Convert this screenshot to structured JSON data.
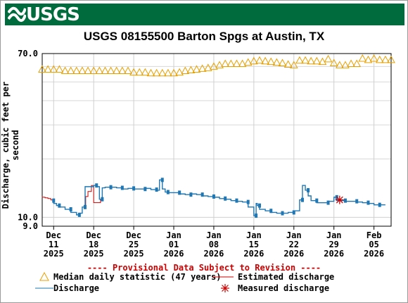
{
  "header": {
    "logo_text": "USGS",
    "brand_color": "#006b3c",
    "logo_icon": "usgs-wave-icon"
  },
  "chart_data": {
    "type": "line",
    "title": "USGS 08155500 Barton Spgs at Austin, TX",
    "ylabel": "Discharge, cubic feet per second",
    "xlabel": "",
    "yscale": "log",
    "ylim": [
      9.0,
      70.0
    ],
    "xlim": [
      "2025-12-09",
      "2026-02-08"
    ],
    "y_ticks": [
      {
        "value": 70.0,
        "label": "70.0"
      },
      {
        "value": 10.0,
        "label": "10.0"
      },
      {
        "value": 9.0,
        "label": "9.0"
      }
    ],
    "x_ticks": [
      {
        "date": "2025-12-11",
        "line1": "Dec",
        "line2": "11",
        "line3": "2025"
      },
      {
        "date": "2025-12-18",
        "line1": "Dec",
        "line2": "18",
        "line3": "2025"
      },
      {
        "date": "2025-12-25",
        "line1": "Dec",
        "line2": "25",
        "line3": "2025"
      },
      {
        "date": "2026-01-01",
        "line1": "Jan",
        "line2": "01",
        "line3": "2026"
      },
      {
        "date": "2026-01-08",
        "line1": "Jan",
        "line2": "08",
        "line3": "2026"
      },
      {
        "date": "2026-01-15",
        "line1": "Jan",
        "line2": "15",
        "line3": "2026"
      },
      {
        "date": "2026-01-22",
        "line1": "Jan",
        "line2": "22",
        "line3": "2026"
      },
      {
        "date": "2026-01-29",
        "line1": "Jan",
        "line2": "29",
        "line3": "2026"
      },
      {
        "date": "2026-02-05",
        "line1": "Feb",
        "line2": "05",
        "line3": "2026"
      }
    ],
    "grid": true,
    "series": [
      {
        "name": "Median daily statistic (47 years)",
        "marker": "triangle",
        "color": "#e8a000",
        "points": [
          [
            "2025-12-09",
            58
          ],
          [
            "2025-12-10",
            58
          ],
          [
            "2025-12-11",
            58
          ],
          [
            "2025-12-12",
            58
          ],
          [
            "2025-12-13",
            57
          ],
          [
            "2025-12-14",
            57
          ],
          [
            "2025-12-15",
            57
          ],
          [
            "2025-12-16",
            57
          ],
          [
            "2025-12-17",
            57
          ],
          [
            "2025-12-18",
            57
          ],
          [
            "2025-12-19",
            57
          ],
          [
            "2025-12-20",
            57
          ],
          [
            "2025-12-21",
            57
          ],
          [
            "2025-12-22",
            57
          ],
          [
            "2025-12-23",
            57
          ],
          [
            "2025-12-24",
            57
          ],
          [
            "2025-12-25",
            56
          ],
          [
            "2025-12-26",
            56
          ],
          [
            "2025-12-27",
            56
          ],
          [
            "2025-12-28",
            55.5
          ],
          [
            "2025-12-29",
            55.5
          ],
          [
            "2025-12-30",
            55.5
          ],
          [
            "2025-12-31",
            55.5
          ],
          [
            "2026-01-01",
            55.5
          ],
          [
            "2026-01-02",
            56
          ],
          [
            "2026-01-03",
            57
          ],
          [
            "2026-01-04",
            57.5
          ],
          [
            "2026-01-05",
            58
          ],
          [
            "2026-01-06",
            58.5
          ],
          [
            "2026-01-07",
            59
          ],
          [
            "2026-01-08",
            60
          ],
          [
            "2026-01-09",
            61
          ],
          [
            "2026-01-10",
            62
          ],
          [
            "2026-01-11",
            62
          ],
          [
            "2026-01-12",
            62
          ],
          [
            "2026-01-13",
            62
          ],
          [
            "2026-01-14",
            63
          ],
          [
            "2026-01-15",
            64
          ],
          [
            "2026-01-16",
            64.5
          ],
          [
            "2026-01-17",
            64
          ],
          [
            "2026-01-18",
            63.5
          ],
          [
            "2026-01-19",
            63
          ],
          [
            "2026-01-20",
            62.5
          ],
          [
            "2026-01-21",
            61.5
          ],
          [
            "2026-01-22",
            61
          ],
          [
            "2026-01-23",
            64.5
          ],
          [
            "2026-01-24",
            64.5
          ],
          [
            "2026-01-25",
            64
          ],
          [
            "2026-01-26",
            64
          ],
          [
            "2026-01-27",
            63.5
          ],
          [
            "2026-01-28",
            65.5
          ],
          [
            "2026-01-29",
            62.5
          ],
          [
            "2026-01-30",
            61
          ],
          [
            "2026-01-31",
            61
          ],
          [
            "2026-02-01",
            62
          ],
          [
            "2026-02-02",
            62
          ],
          [
            "2026-02-03",
            66
          ],
          [
            "2026-02-04",
            65
          ],
          [
            "2026-02-05",
            66
          ],
          [
            "2026-02-06",
            65
          ],
          [
            "2026-02-07",
            65
          ],
          [
            "2026-02-08",
            65
          ]
        ]
      },
      {
        "name": "Estimated discharge",
        "color": "#cc0000",
        "points": [
          [
            "2025-12-09",
            12.8
          ],
          [
            "2025-12-09.5",
            12.7
          ],
          [
            "2025-12-10",
            12.6
          ],
          [
            "2025-12-10.5",
            12.5
          ],
          [
            "2025-12-11",
            12.3
          ],
          [
            "2025-12-16.6",
            11.3
          ],
          [
            "2025-12-17",
            12.8
          ],
          [
            "2025-12-17.6",
            13.6
          ],
          [
            "2025-12-18",
            14.6
          ],
          [
            "2025-12-19.2",
            11.9
          ],
          [
            "2025-12-19.5",
            12.4
          ]
        ]
      },
      {
        "name": "Discharge",
        "color": "#1f77b4",
        "points": [
          [
            "2025-12-11",
            12.2
          ],
          [
            "2025-12-11.5",
            11.8
          ],
          [
            "2025-12-12",
            11.5
          ],
          [
            "2025-12-13",
            11.3
          ],
          [
            "2025-12-14",
            11.0
          ],
          [
            "2025-12-15",
            10.6
          ],
          [
            "2025-12-15.5",
            10.3
          ],
          [
            "2025-12-16",
            10.5
          ],
          [
            "2025-12-16.5",
            11.3
          ],
          [
            "2025-12-18",
            14.4
          ],
          [
            "2025-12-18.5",
            14.6
          ],
          [
            "2025-12-19",
            14.4
          ],
          [
            "2025-12-19.5",
            12.4
          ],
          [
            "2025-12-20",
            14.2
          ],
          [
            "2025-12-21",
            14.3
          ],
          [
            "2025-12-22",
            14.3
          ],
          [
            "2025-12-23",
            14.2
          ],
          [
            "2025-12-24",
            14.0
          ],
          [
            "2025-12-25",
            14.1
          ],
          [
            "2025-12-26",
            14.0
          ],
          [
            "2025-12-27",
            14.0
          ],
          [
            "2025-12-28",
            14.1
          ],
          [
            "2025-12-29",
            13.9
          ],
          [
            "2025-12-29.5",
            13.8
          ],
          [
            "2025-12-30",
            15.6
          ],
          [
            "2025-12-30.5",
            14.0
          ],
          [
            "2025-12-31",
            13.5
          ],
          [
            "2026-01-01",
            13.4
          ],
          [
            "2026-01-02",
            13.4
          ],
          [
            "2026-01-03",
            13.2
          ],
          [
            "2026-01-04",
            13.1
          ],
          [
            "2026-01-05",
            13.2
          ],
          [
            "2026-01-06",
            13.1
          ],
          [
            "2026-01-07",
            12.9
          ],
          [
            "2026-01-08",
            12.8
          ],
          [
            "2026-01-09",
            12.7
          ],
          [
            "2026-01-10",
            12.5
          ],
          [
            "2026-01-11",
            12.4
          ],
          [
            "2026-01-12",
            12.2
          ],
          [
            "2026-01-13",
            12.1
          ],
          [
            "2026-01-14",
            12.0
          ],
          [
            "2026-01-15",
            11.3
          ],
          [
            "2026-01-15.4",
            10.2
          ],
          [
            "2026-01-15.6",
            11.8
          ],
          [
            "2026-01-16",
            11.5
          ],
          [
            "2026-01-17",
            11.0
          ],
          [
            "2026-01-18",
            10.8
          ],
          [
            "2026-01-19",
            10.6
          ],
          [
            "2026-01-20",
            10.5
          ],
          [
            "2026-01-21",
            10.5
          ],
          [
            "2026-01-22",
            10.6
          ],
          [
            "2026-01-23",
            10.8
          ],
          [
            "2026-01-23.5",
            12.3
          ],
          [
            "2026-01-24",
            14.6
          ],
          [
            "2026-01-24.5",
            13.8
          ],
          [
            "2026-01-25",
            12.9
          ],
          [
            "2026-01-26",
            12.2
          ],
          [
            "2026-01-27",
            11.9
          ],
          [
            "2026-01-28",
            11.9
          ],
          [
            "2026-01-29",
            12.1
          ],
          [
            "2026-01-29.5",
            12.7
          ],
          [
            "2026-01-30",
            12.2
          ],
          [
            "2026-01-31",
            12.2
          ],
          [
            "2026-02-01",
            12.1
          ],
          [
            "2026-02-02",
            12.1
          ],
          [
            "2026-02-03",
            12.0
          ],
          [
            "2026-02-04",
            11.9
          ],
          [
            "2026-02-05",
            11.8
          ],
          [
            "2026-02-06",
            11.6
          ],
          [
            "2026-02-07",
            11.6
          ]
        ]
      },
      {
        "name": "Measured discharge",
        "marker": "asterisk",
        "color": "#cc0000",
        "points": [
          [
            "2026-01-30",
            12.3
          ]
        ]
      }
    ]
  },
  "provisional_note": "---- Provisional Data Subject to Revision ----",
  "legend": {
    "median": "Median daily statistic (47 years)",
    "estimated": "Estimated discharge",
    "discharge": "Discharge",
    "measured": "Measured discharge"
  }
}
